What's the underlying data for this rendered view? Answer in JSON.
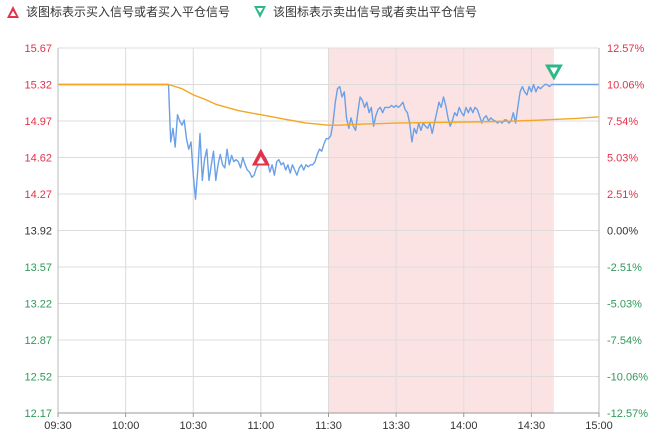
{
  "legend": {
    "buy": {
      "label": "该图标表示买入信号或者买入平仓信号",
      "icon": "red-up-triangle-icon",
      "color": "#e2334a"
    },
    "sell": {
      "label": "该图标表示卖出信号或者卖出平仓信号",
      "icon": "green-down-triangle-icon",
      "color": "#2eb88a"
    }
  },
  "colors": {
    "up": "#e2334a",
    "down": "#2e9a58",
    "neutral": "#333333",
    "price_line": "#6aa0e8",
    "avg_line": "#f5a623",
    "highlight": "#fbe3e4",
    "grid": "#dcdcdc"
  },
  "chart_data": {
    "type": "line",
    "title": "",
    "xlabel": "",
    "ylabel": "",
    "x_ticks": [
      "09:30",
      "10:00",
      "10:30",
      "11:00",
      "11:30",
      "13:30",
      "14:00",
      "14:30",
      "15:00"
    ],
    "y_ticks_left": [
      "15.67",
      "15.32",
      "14.97",
      "14.62",
      "14.27",
      "13.92",
      "13.57",
      "13.22",
      "12.87",
      "12.52",
      "12.17"
    ],
    "y_ticks_right": [
      "12.57%",
      "10.06%",
      "7.54%",
      "5.03%",
      "2.51%",
      "0.00%",
      "-2.51%",
      "-5.03%",
      "-7.54%",
      "-10.06%",
      "-12.57%"
    ],
    "ylim": [
      12.17,
      15.67
    ],
    "reference_price": 13.92,
    "highlight_range": [
      "11:30",
      "14:40"
    ],
    "series": [
      {
        "key": "price",
        "points": [
          [
            "09:30",
            15.32
          ],
          [
            "10:00",
            15.32
          ],
          [
            "10:19",
            15.32
          ],
          [
            "10:20",
            14.77
          ],
          [
            "10:21",
            14.9
          ],
          [
            "10:22",
            14.72
          ],
          [
            "10:23",
            15.03
          ],
          [
            "10:24",
            14.97
          ],
          [
            "10:25",
            14.93
          ],
          [
            "10:26",
            14.98
          ],
          [
            "10:27",
            14.8
          ],
          [
            "10:28",
            14.7
          ],
          [
            "10:29",
            14.77
          ],
          [
            "10:30",
            14.45
          ],
          [
            "10:31",
            14.22
          ],
          [
            "10:32",
            14.5
          ],
          [
            "10:33",
            14.85
          ],
          [
            "10:34",
            14.4
          ],
          [
            "10:35",
            14.6
          ],
          [
            "10:36",
            14.7
          ],
          [
            "10:37",
            14.4
          ],
          [
            "10:38",
            14.55
          ],
          [
            "10:39",
            14.68
          ],
          [
            "10:40",
            14.4
          ],
          [
            "10:41",
            14.55
          ],
          [
            "10:42",
            14.65
          ],
          [
            "10:43",
            14.55
          ],
          [
            "10:44",
            14.52
          ],
          [
            "10:45",
            14.7
          ],
          [
            "10:46",
            14.55
          ],
          [
            "10:47",
            14.64
          ],
          [
            "10:48",
            14.58
          ],
          [
            "10:49",
            14.6
          ],
          [
            "10:50",
            14.58
          ],
          [
            "10:51",
            14.52
          ],
          [
            "10:52",
            14.62
          ],
          [
            "10:53",
            14.55
          ],
          [
            "10:54",
            14.5
          ],
          [
            "10:55",
            14.48
          ],
          [
            "10:56",
            14.43
          ],
          [
            "10:57",
            14.45
          ],
          [
            "10:58",
            14.52
          ],
          [
            "10:59",
            14.55
          ],
          [
            "11:00",
            14.6
          ],
          [
            "11:01",
            14.55
          ],
          [
            "11:02",
            14.62
          ],
          [
            "11:03",
            14.57
          ],
          [
            "11:04",
            14.48
          ],
          [
            "11:05",
            14.55
          ],
          [
            "11:06",
            14.45
          ],
          [
            "11:07",
            14.58
          ],
          [
            "11:08",
            14.6
          ],
          [
            "11:09",
            14.55
          ],
          [
            "11:10",
            14.57
          ],
          [
            "11:11",
            14.5
          ],
          [
            "11:12",
            14.55
          ],
          [
            "11:13",
            14.47
          ],
          [
            "11:14",
            14.55
          ],
          [
            "11:15",
            14.5
          ],
          [
            "11:16",
            14.45
          ],
          [
            "11:17",
            14.52
          ],
          [
            "11:18",
            14.55
          ],
          [
            "11:19",
            14.5
          ],
          [
            "11:20",
            14.55
          ],
          [
            "11:21",
            14.53
          ],
          [
            "11:22",
            14.55
          ],
          [
            "11:23",
            14.55
          ],
          [
            "11:24",
            14.58
          ],
          [
            "11:25",
            14.65
          ],
          [
            "11:26",
            14.7
          ],
          [
            "11:27",
            14.68
          ],
          [
            "11:28",
            14.75
          ],
          [
            "11:29",
            14.8
          ],
          [
            "11:30",
            14.8
          ],
          [
            "13:01",
            14.83
          ],
          [
            "13:02",
            14.95
          ],
          [
            "13:03",
            15.15
          ],
          [
            "13:04",
            15.28
          ],
          [
            "13:05",
            15.3
          ],
          [
            "13:06",
            15.2
          ],
          [
            "13:07",
            15.25
          ],
          [
            "13:08",
            15.0
          ],
          [
            "13:09",
            14.9
          ],
          [
            "13:10",
            15.0
          ],
          [
            "13:11",
            14.92
          ],
          [
            "13:12",
            14.88
          ],
          [
            "13:13",
            15.05
          ],
          [
            "13:14",
            15.2
          ],
          [
            "13:15",
            15.17
          ],
          [
            "13:16",
            15.1
          ],
          [
            "13:17",
            15.15
          ],
          [
            "13:18",
            15.05
          ],
          [
            "13:19",
            15.1
          ],
          [
            "13:20",
            14.92
          ],
          [
            "13:21",
            15.02
          ],
          [
            "13:22",
            15.08
          ],
          [
            "13:23",
            15.1
          ],
          [
            "13:24",
            15.05
          ],
          [
            "13:25",
            15.1
          ],
          [
            "13:26",
            15.1
          ],
          [
            "13:27",
            15.1
          ],
          [
            "13:28",
            15.12
          ],
          [
            "13:29",
            15.1
          ],
          [
            "13:30",
            15.12
          ],
          [
            "13:31",
            15.1
          ],
          [
            "13:32",
            15.12
          ],
          [
            "13:33",
            15.15
          ],
          [
            "13:34",
            15.08
          ],
          [
            "13:35",
            15.05
          ],
          [
            "13:36",
            14.95
          ],
          [
            "13:37",
            14.77
          ],
          [
            "13:38",
            14.9
          ],
          [
            "13:39",
            14.85
          ],
          [
            "13:40",
            14.95
          ],
          [
            "13:41",
            14.88
          ],
          [
            "13:42",
            14.95
          ],
          [
            "13:43",
            14.92
          ],
          [
            "13:44",
            14.9
          ],
          [
            "13:45",
            14.95
          ],
          [
            "13:46",
            14.85
          ],
          [
            "13:47",
            14.95
          ],
          [
            "13:48",
            15.05
          ],
          [
            "13:49",
            15.15
          ],
          [
            "13:50",
            15.1
          ],
          [
            "13:51",
            15.2
          ],
          [
            "13:52",
            15.12
          ],
          [
            "13:53",
            15.0
          ],
          [
            "13:54",
            14.92
          ],
          [
            "13:55",
            14.98
          ],
          [
            "13:56",
            15.05
          ],
          [
            "13:57",
            15.02
          ],
          [
            "13:58",
            15.1
          ],
          [
            "13:59",
            15.05
          ],
          [
            "14:00",
            15.02
          ],
          [
            "14:01",
            15.1
          ],
          [
            "14:02",
            15.05
          ],
          [
            "14:03",
            15.1
          ],
          [
            "14:04",
            15.05
          ],
          [
            "14:05",
            15.1
          ],
          [
            "14:06",
            15.08
          ],
          [
            "14:07",
            15.02
          ],
          [
            "14:08",
            14.95
          ],
          [
            "14:09",
            15.0
          ],
          [
            "14:10",
            15.02
          ],
          [
            "14:11",
            14.97
          ],
          [
            "14:12",
            15.0
          ],
          [
            "14:13",
            14.98
          ],
          [
            "14:14",
            14.97
          ],
          [
            "14:15",
            14.95
          ],
          [
            "14:16",
            14.97
          ],
          [
            "14:17",
            14.95
          ],
          [
            "14:18",
            14.98
          ],
          [
            "14:19",
            14.98
          ],
          [
            "14:20",
            14.95
          ],
          [
            "14:21",
            14.97
          ],
          [
            "14:22",
            15.05
          ],
          [
            "14:23",
            14.95
          ],
          [
            "14:24",
            15.1
          ],
          [
            "14:25",
            15.25
          ],
          [
            "14:26",
            15.3
          ],
          [
            "14:27",
            15.25
          ],
          [
            "14:28",
            15.22
          ],
          [
            "14:29",
            15.3
          ],
          [
            "14:30",
            15.25
          ],
          [
            "14:31",
            15.32
          ],
          [
            "14:32",
            15.25
          ],
          [
            "14:33",
            15.3
          ],
          [
            "14:34",
            15.28
          ],
          [
            "14:35",
            15.3
          ],
          [
            "14:36",
            15.32
          ],
          [
            "14:37",
            15.32
          ],
          [
            "14:38",
            15.3
          ],
          [
            "14:39",
            15.32
          ],
          [
            "14:40",
            15.32
          ],
          [
            "14:50",
            15.32
          ],
          [
            "15:00",
            15.32
          ]
        ]
      },
      {
        "key": "average",
        "points": [
          [
            "09:30",
            15.32
          ],
          [
            "10:00",
            15.32
          ],
          [
            "10:19",
            15.32
          ],
          [
            "10:25",
            15.28
          ],
          [
            "10:30",
            15.22
          ],
          [
            "10:35",
            15.18
          ],
          [
            "10:40",
            15.13
          ],
          [
            "10:45",
            15.1
          ],
          [
            "10:50",
            15.07
          ],
          [
            "10:55",
            15.05
          ],
          [
            "11:00",
            15.03
          ],
          [
            "11:05",
            15.01
          ],
          [
            "11:10",
            14.99
          ],
          [
            "11:15",
            14.97
          ],
          [
            "11:20",
            14.95
          ],
          [
            "11:25",
            14.94
          ],
          [
            "11:30",
            14.93
          ],
          [
            "13:05",
            14.93
          ],
          [
            "13:15",
            14.94
          ],
          [
            "13:30",
            14.95
          ],
          [
            "13:45",
            14.955
          ],
          [
            "14:00",
            14.96
          ],
          [
            "14:15",
            14.965
          ],
          [
            "14:30",
            14.975
          ],
          [
            "14:40",
            14.985
          ],
          [
            "14:50",
            14.995
          ],
          [
            "15:00",
            15.01
          ]
        ]
      }
    ],
    "markers": [
      {
        "type": "buy",
        "time": "11:00",
        "price": 14.62
      },
      {
        "type": "sell",
        "time": "14:40",
        "price": 15.32
      }
    ]
  }
}
